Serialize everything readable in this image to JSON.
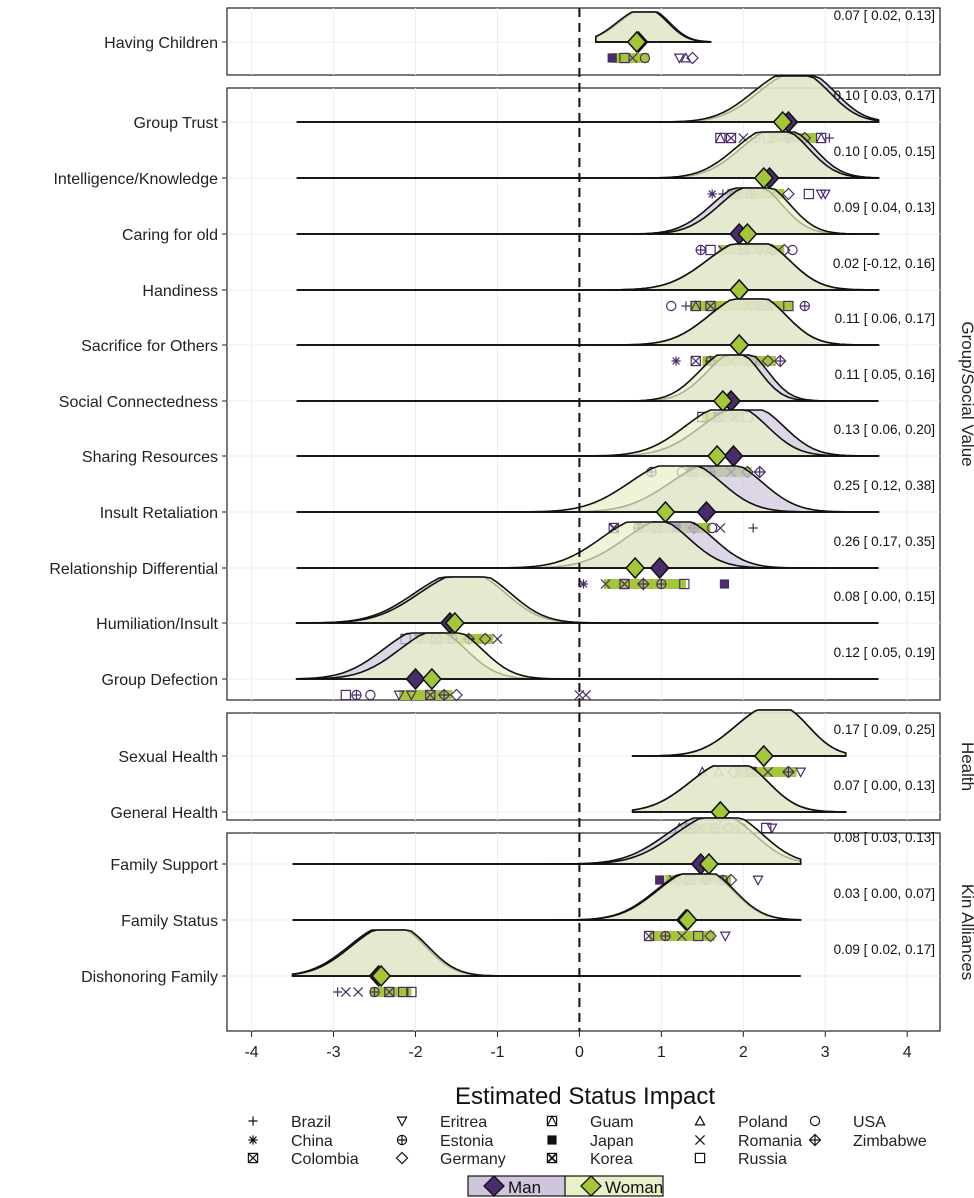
{
  "chart_data": {
    "type": "ridgeline",
    "xlabel": "Estimated Status Impact",
    "xlim": [
      -4.3,
      4.4
    ],
    "xticks": [
      -4,
      -3,
      -2,
      -1,
      0,
      1,
      2,
      3,
      4
    ],
    "reference_line_x": 0,
    "grid": true,
    "series": [
      {
        "name": "Man",
        "color": "#4a2c6d",
        "fill": "#cfc6dc"
      },
      {
        "name": "Woman",
        "color": "#a4c639",
        "fill": "#e8f0c8"
      }
    ],
    "country_legend": [
      {
        "name": "Brazil",
        "symbol": "plus"
      },
      {
        "name": "Eritrea",
        "symbol": "triangle-down"
      },
      {
        "name": "Guam",
        "symbol": "square-triangle"
      },
      {
        "name": "Poland",
        "symbol": "triangle"
      },
      {
        "name": "USA",
        "symbol": "circle"
      },
      {
        "name": "China",
        "symbol": "asterisk"
      },
      {
        "name": "Estonia",
        "symbol": "circle-plus"
      },
      {
        "name": "Japan",
        "symbol": "square-filled"
      },
      {
        "name": "Romania",
        "symbol": "x"
      },
      {
        "name": "Zimbabwe",
        "symbol": "diamond-plus"
      },
      {
        "name": "Colombia",
        "symbol": "square-x"
      },
      {
        "name": "Germany",
        "symbol": "diamond"
      },
      {
        "name": "Korea",
        "symbol": "square-x-heavy"
      },
      {
        "name": "Russia",
        "symbol": "square"
      }
    ],
    "panels": [
      {
        "label": "",
        "rows": [
          {
            "label": "Having Children",
            "man": 0.72,
            "woman": 0.7,
            "annotation": "0.07 [ 0.02, 0.13]",
            "range": [
              0.2,
              1.6
            ],
            "woman_points": [
              0.4,
              0.85
            ],
            "points": [
              {
                "x": 0.4,
                "s": "square-filled"
              },
              {
                "x": 0.55,
                "s": "square"
              },
              {
                "x": 0.65,
                "s": "x"
              },
              {
                "x": 0.8,
                "s": "circle"
              },
              {
                "x": 1.22,
                "s": "triangle-down"
              },
              {
                "x": 1.3,
                "s": "triangle"
              },
              {
                "x": 1.38,
                "s": "diamond"
              }
            ]
          }
        ]
      },
      {
        "label": "Group/Social Value",
        "rows": [
          {
            "label": "Group Trust",
            "man": 2.55,
            "woman": 2.48,
            "annotation": "0.10 [ 0.03, 0.17]",
            "range": [
              -3.45,
              3.65
            ],
            "woman_points": [
              2.3,
              2.9
            ],
            "points": [
              {
                "x": 1.72,
                "s": "square-triangle"
              },
              {
                "x": 1.85,
                "s": "square-x"
              },
              {
                "x": 2.0,
                "s": "x"
              },
              {
                "x": 2.15,
                "s": "circle-plus"
              },
              {
                "x": 2.3,
                "s": "square"
              },
              {
                "x": 2.55,
                "s": "diamond-plus"
              },
              {
                "x": 2.75,
                "s": "diamond"
              },
              {
                "x": 2.95,
                "s": "square-triangle"
              },
              {
                "x": 3.05,
                "s": "plus"
              }
            ]
          },
          {
            "label": "Intelligence/Knowledge",
            "man": 2.32,
            "woman": 2.25,
            "annotation": "0.10 [ 0.05, 0.15]",
            "range": [
              -3.45,
              3.65
            ],
            "woman_points": [
              1.8,
              2.5
            ],
            "points": [
              {
                "x": 1.62,
                "s": "asterisk"
              },
              {
                "x": 1.75,
                "s": "plus"
              },
              {
                "x": 1.9,
                "s": "square-x"
              },
              {
                "x": 2.1,
                "s": "circle-plus"
              },
              {
                "x": 2.35,
                "s": "x"
              },
              {
                "x": 2.55,
                "s": "diamond"
              },
              {
                "x": 2.8,
                "s": "square"
              },
              {
                "x": 2.95,
                "s": "triangle-down"
              },
              {
                "x": 3.0,
                "s": "triangle-down"
              }
            ]
          },
          {
            "label": "Caring for old",
            "man": 1.95,
            "woman": 2.05,
            "annotation": "0.09 [ 0.04, 0.13]",
            "range": [
              -3.45,
              3.65
            ],
            "woman_points": [
              1.7,
              2.5
            ],
            "points": [
              {
                "x": 1.48,
                "s": "circle-plus"
              },
              {
                "x": 1.6,
                "s": "square"
              },
              {
                "x": 1.75,
                "s": "x"
              },
              {
                "x": 2.0,
                "s": "square-x"
              },
              {
                "x": 2.2,
                "s": "triangle-down"
              },
              {
                "x": 2.35,
                "s": "diamond-plus"
              },
              {
                "x": 2.5,
                "s": "diamond"
              },
              {
                "x": 2.6,
                "s": "circle"
              }
            ]
          },
          {
            "label": "Handiness",
            "man": 1.95,
            "woman": 1.95,
            "annotation": "0.02 [-0.12, 0.16]",
            "range": [
              -3.45,
              3.65
            ],
            "woman_points": [
              1.35,
              2.6
            ],
            "points": [
              {
                "x": 1.12,
                "s": "circle"
              },
              {
                "x": 1.3,
                "s": "plus"
              },
              {
                "x": 1.42,
                "s": "square-triangle"
              },
              {
                "x": 1.6,
                "s": "square-x"
              },
              {
                "x": 2.05,
                "s": "x"
              },
              {
                "x": 2.18,
                "s": "triangle-down"
              },
              {
                "x": 2.3,
                "s": "triangle"
              },
              {
                "x": 2.55,
                "s": "square"
              },
              {
                "x": 2.75,
                "s": "circle-plus"
              }
            ]
          },
          {
            "label": "Sacrifice for Others",
            "man": 1.95,
            "woman": 1.95,
            "annotation": "0.11 [ 0.06, 0.17]",
            "range": [
              -3.45,
              3.65
            ],
            "woman_points": [
              1.5,
              2.4
            ],
            "points": [
              {
                "x": 1.18,
                "s": "asterisk"
              },
              {
                "x": 1.42,
                "s": "square-x"
              },
              {
                "x": 1.6,
                "s": "circle-plus"
              },
              {
                "x": 1.85,
                "s": "x"
              },
              {
                "x": 2.1,
                "s": "square"
              },
              {
                "x": 2.3,
                "s": "diamond"
              },
              {
                "x": 2.45,
                "s": "diamond-plus"
              }
            ]
          },
          {
            "label": "Social Connectedness",
            "man": 1.85,
            "woman": 1.75,
            "annotation": "0.11 [ 0.05, 0.16]",
            "range": [
              -3.45,
              3.65
            ],
            "woman_points": [
              1.5,
              2.0
            ],
            "points": [
              {
                "x": 1.5,
                "s": "square"
              },
              {
                "x": 1.7,
                "s": "square-x"
              },
              {
                "x": 1.9,
                "s": "x"
              },
              {
                "x": 2.05,
                "s": "square"
              }
            ]
          },
          {
            "label": "Sharing Resources",
            "man": 1.88,
            "woman": 1.68,
            "annotation": "0.13 [ 0.06, 0.20]",
            "range": [
              -3.45,
              3.65
            ],
            "woman_points": [
              1.3,
              2.1
            ],
            "points": [
              {
                "x": 0.88,
                "s": "circle-plus"
              },
              {
                "x": 1.25,
                "s": "circle"
              },
              {
                "x": 1.38,
                "s": "square-x"
              },
              {
                "x": 1.6,
                "s": "circle-plus"
              },
              {
                "x": 1.85,
                "s": "x"
              },
              {
                "x": 2.05,
                "s": "diamond"
              },
              {
                "x": 2.2,
                "s": "diamond-plus"
              }
            ]
          },
          {
            "label": "Insult Retaliation",
            "man": 1.55,
            "woman": 1.05,
            "annotation": "0.25 [ 0.12, 0.38]",
            "range": [
              -3.45,
              3.65
            ],
            "woman_points": [
              0.7,
              1.6
            ],
            "points": [
              {
                "x": 0.42,
                "s": "square-x-heavy"
              },
              {
                "x": 0.72,
                "s": "circle-plus"
              },
              {
                "x": 0.95,
                "s": "square-x"
              },
              {
                "x": 1.18,
                "s": "square-filled"
              },
              {
                "x": 1.4,
                "s": "diamond-plus"
              },
              {
                "x": 1.62,
                "s": "circle"
              },
              {
                "x": 1.72,
                "s": "x"
              },
              {
                "x": 2.12,
                "s": "plus"
              }
            ]
          },
          {
            "label": "Relationship Differential",
            "man": 0.98,
            "woman": 0.68,
            "annotation": "0.26 [ 0.17, 0.35]",
            "range": [
              -3.45,
              3.65
            ],
            "woman_points": [
              0.3,
              1.3
            ],
            "points": [
              {
                "x": 0.05,
                "s": "asterisk"
              },
              {
                "x": 0.32,
                "s": "x"
              },
              {
                "x": 0.55,
                "s": "square-x"
              },
              {
                "x": 0.78,
                "s": "diamond-plus"
              },
              {
                "x": 1.0,
                "s": "circle-plus"
              },
              {
                "x": 1.28,
                "s": "square"
              },
              {
                "x": 1.77,
                "s": "square-filled"
              }
            ]
          },
          {
            "label": "Humiliation/Insult",
            "man": -1.58,
            "woman": -1.52,
            "annotation": "0.08 [ 0.00, 0.15]",
            "range": [
              -3.45,
              3.65
            ],
            "woman_points": [
              -2.0,
              -1.05
            ],
            "points": [
              {
                "x": -2.12,
                "s": "square"
              },
              {
                "x": -1.95,
                "s": "triangle-down"
              },
              {
                "x": -1.75,
                "s": "square-x"
              },
              {
                "x": -1.55,
                "s": "circle-plus"
              },
              {
                "x": -1.35,
                "s": "diamond-plus"
              },
              {
                "x": -1.15,
                "s": "diamond"
              },
              {
                "x": -1.0,
                "s": "x"
              }
            ]
          },
          {
            "label": "Group Defection",
            "man": -2.0,
            "woman": -1.8,
            "annotation": "0.12 [ 0.05, 0.19]",
            "range": [
              -3.45,
              3.65
            ],
            "woman_points": [
              -2.2,
              -1.55
            ],
            "points": [
              {
                "x": -2.85,
                "s": "square"
              },
              {
                "x": -2.72,
                "s": "circle-plus"
              },
              {
                "x": -2.55,
                "s": "circle"
              },
              {
                "x": -2.2,
                "s": "triangle-down"
              },
              {
                "x": -2.05,
                "s": "triangle-down"
              },
              {
                "x": -1.82,
                "s": "square-x"
              },
              {
                "x": -1.65,
                "s": "diamond-plus"
              },
              {
                "x": -1.5,
                "s": "diamond"
              },
              {
                "x": 0.0,
                "s": "x"
              },
              {
                "x": 0.08,
                "s": "x"
              }
            ]
          }
        ]
      },
      {
        "label": "Health",
        "rows": [
          {
            "label": "Sexual Health",
            "man": 2.25,
            "woman": 2.25,
            "annotation": "0.17 [ 0.09, 0.25]",
            "range": [
              0.65,
              3.25
            ],
            "woman_points": [
              1.9,
              2.65
            ],
            "points": [
              {
                "x": 1.5,
                "s": "triangle"
              },
              {
                "x": 1.7,
                "s": "triangle"
              },
              {
                "x": 1.88,
                "s": "diamond"
              },
              {
                "x": 2.1,
                "s": "square-x"
              },
              {
                "x": 2.3,
                "s": "x"
              },
              {
                "x": 2.55,
                "s": "diamond-plus"
              },
              {
                "x": 2.7,
                "s": "triangle-down"
              }
            ]
          },
          {
            "label": "General Health",
            "man": 1.72,
            "woman": 1.72,
            "annotation": "0.07 [ 0.00, 0.13]",
            "range": [
              0.65,
              3.25
            ],
            "woman_points": [
              1.25,
              2.0
            ],
            "points": [
              {
                "x": 1.22,
                "s": "triangle"
              },
              {
                "x": 1.35,
                "s": "square-x"
              },
              {
                "x": 1.48,
                "s": "x"
              },
              {
                "x": 1.65,
                "s": "circle-plus"
              },
              {
                "x": 1.82,
                "s": "diamond"
              },
              {
                "x": 1.98,
                "s": "circle"
              },
              {
                "x": 2.28,
                "s": "square"
              },
              {
                "x": 2.35,
                "s": "triangle-down"
              }
            ]
          }
        ]
      },
      {
        "label": "Kin Alliances",
        "rows": [
          {
            "label": "Family Support",
            "man": 1.48,
            "woman": 1.58,
            "annotation": "0.08 [ 0.03, 0.13]",
            "range": [
              -3.5,
              2.7
            ],
            "woman_points": [
              1.05,
              1.85
            ],
            "points": [
              {
                "x": 0.98,
                "s": "square-filled"
              },
              {
                "x": 1.15,
                "s": "x"
              },
              {
                "x": 1.35,
                "s": "square-x"
              },
              {
                "x": 1.55,
                "s": "diamond-plus"
              },
              {
                "x": 1.75,
                "s": "circle-plus"
              },
              {
                "x": 1.85,
                "s": "diamond"
              },
              {
                "x": 2.18,
                "s": "triangle-down"
              }
            ]
          },
          {
            "label": "Family Status",
            "man": 1.3,
            "woman": 1.32,
            "annotation": "0.03 [ 0.00, 0.07]",
            "range": [
              -3.5,
              2.7
            ],
            "woman_points": [
              0.85,
              1.65
            ],
            "points": [
              {
                "x": 0.85,
                "s": "square-x"
              },
              {
                "x": 1.05,
                "s": "circle-plus"
              },
              {
                "x": 1.25,
                "s": "x"
              },
              {
                "x": 1.45,
                "s": "square"
              },
              {
                "x": 1.6,
                "s": "diamond"
              },
              {
                "x": 1.78,
                "s": "triangle-down"
              }
            ]
          },
          {
            "label": "Dishonoring Family",
            "man": -2.45,
            "woman": -2.42,
            "annotation": "0.09 [ 0.02, 0.17]",
            "range": [
              -3.5,
              2.7
            ],
            "woman_points": [
              -2.55,
              -2.05
            ],
            "points": [
              {
                "x": -2.95,
                "s": "plus"
              },
              {
                "x": -2.85,
                "s": "x"
              },
              {
                "x": -2.7,
                "s": "x"
              },
              {
                "x": -2.5,
                "s": "circle-plus"
              },
              {
                "x": -2.32,
                "s": "square-x"
              },
              {
                "x": -2.15,
                "s": "square"
              },
              {
                "x": -2.05,
                "s": "square"
              }
            ]
          }
        ]
      }
    ]
  }
}
